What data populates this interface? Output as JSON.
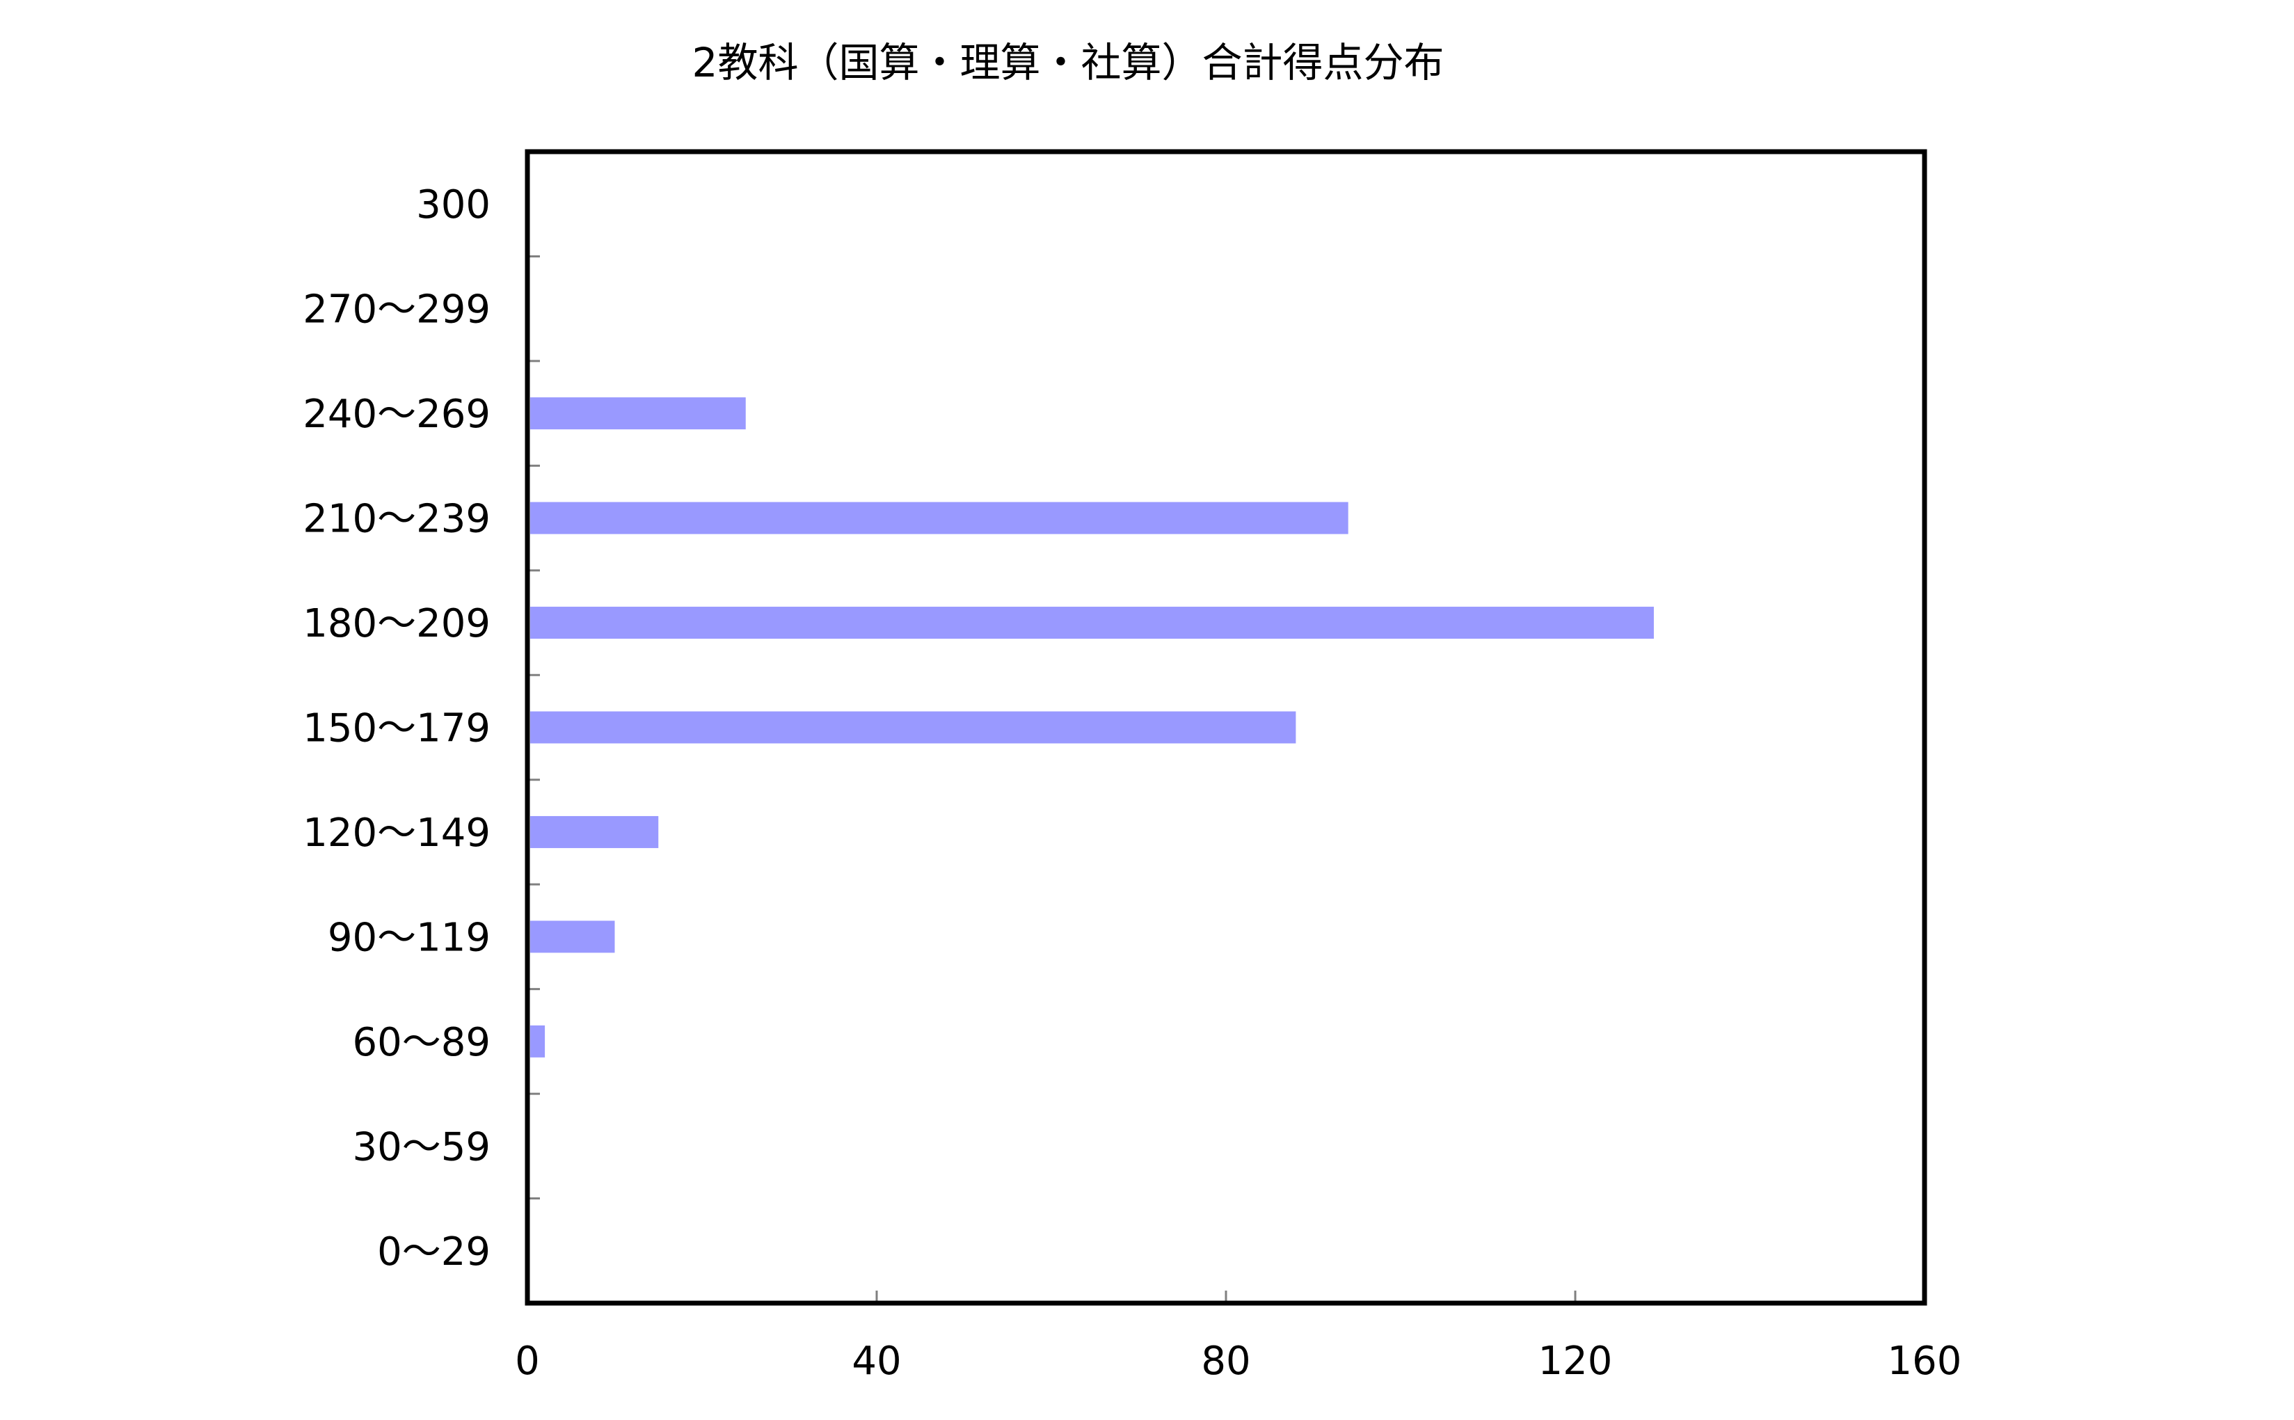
{
  "chart_data": {
    "type": "bar",
    "orientation": "horizontal",
    "title": "2教科（国算・理算・社算）合計得点分布",
    "xlabel": "",
    "ylabel": "",
    "categories": [
      "0～29",
      "30～59",
      "60～89",
      "90～119",
      "120～149",
      "150～179",
      "180～209",
      "210～239",
      "240～269",
      "270～299",
      "300"
    ],
    "values": [
      0,
      0,
      2,
      10,
      15,
      88,
      129,
      94,
      25,
      0,
      0
    ],
    "xlim": [
      0,
      160
    ],
    "xticks": [
      "0",
      "40",
      "80",
      "120",
      "160"
    ],
    "grid": false,
    "legend": "none",
    "colors": {
      "bar": "#9999ff",
      "frame": "#000000",
      "tick": "#808080"
    }
  }
}
